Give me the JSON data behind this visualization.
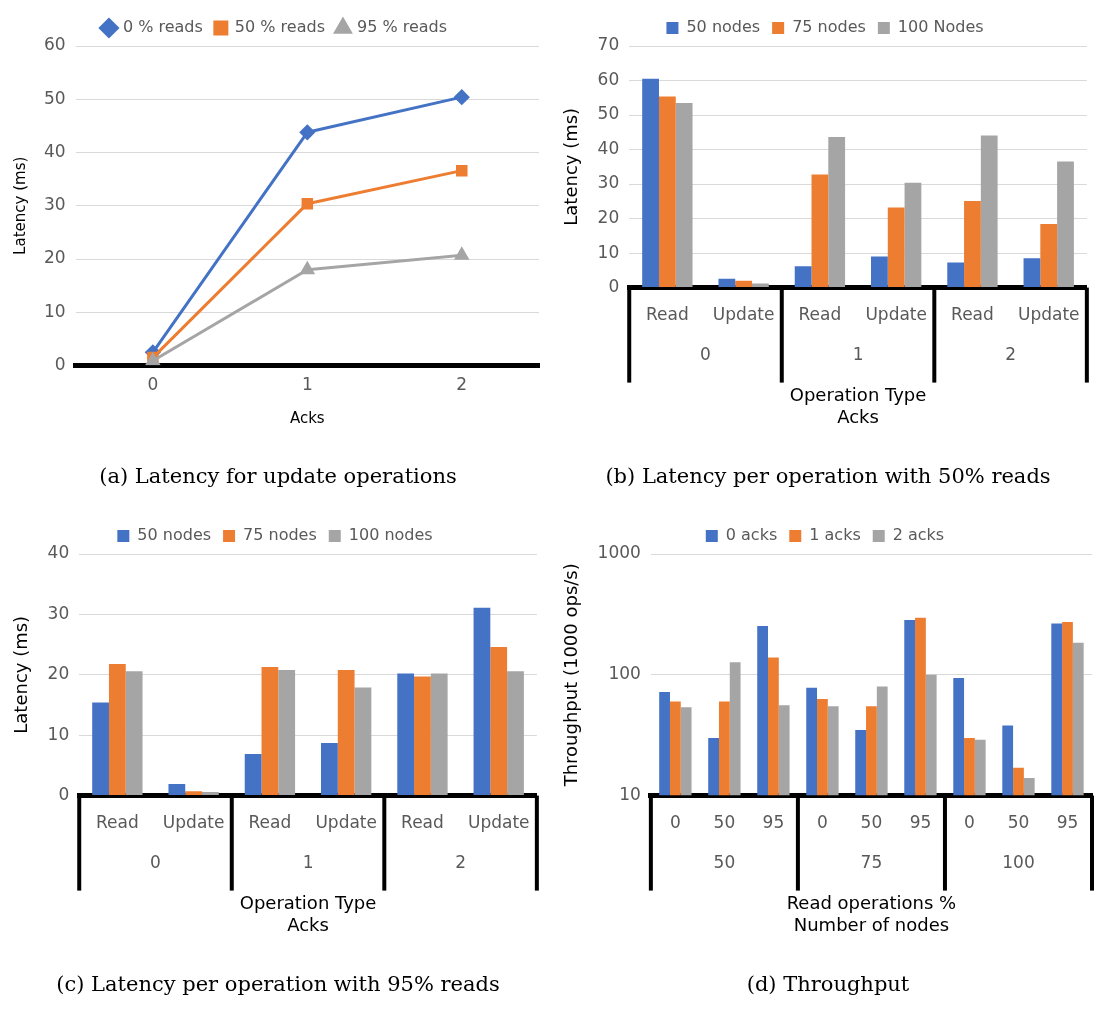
{
  "chart_data": [
    {
      "type": "line",
      "title": "(a) Latency for update operations",
      "xlabel": "Acks",
      "ylabel": "Latency (ms)",
      "categories": [
        "0",
        "1",
        "2"
      ],
      "ylim": [
        0,
        60
      ],
      "yticks": [
        0,
        10,
        20,
        30,
        40,
        50,
        60
      ],
      "grid": "y",
      "legend": "top",
      "series": [
        {
          "name": "0 % reads",
          "color": "#4472c4",
          "marker": "diamond",
          "values": [
            2.5,
            43.8,
            50.4
          ]
        },
        {
          "name": "50 % reads",
          "color": "#ed7d31",
          "marker": "square",
          "values": [
            1.5,
            30.4,
            36.6
          ]
        },
        {
          "name": "95 % reads",
          "color": "#a5a5a5",
          "marker": "triangle",
          "values": [
            0.9,
            18.0,
            20.7
          ]
        }
      ]
    },
    {
      "type": "bar",
      "title": "(b) Latency per operation with 50% reads",
      "xlabel": "Operation Type\nAcks",
      "ylabel": "Latency (ms)",
      "categories": [
        "Read",
        "Update",
        "Read",
        "Update",
        "Read",
        "Update"
      ],
      "annotations": [
        "0",
        "1",
        "2"
      ],
      "ylim": [
        0,
        70
      ],
      "yticks": [
        0,
        10,
        20,
        30,
        40,
        50,
        60,
        70
      ],
      "grid": "y",
      "legend": "top",
      "series": [
        {
          "name": "50 nodes",
          "color": "#4472c4",
          "values": [
            60.5,
            2.6,
            6.2,
            9.0,
            7.3,
            8.5
          ]
        },
        {
          "name": "75 nodes",
          "color": "#ed7d31",
          "values": [
            55.4,
            2.0,
            32.8,
            23.2,
            25.1,
            18.4
          ]
        },
        {
          "name": "100 Nodes",
          "color": "#a5a5a5",
          "values": [
            53.5,
            1.2,
            43.6,
            30.4,
            44.1,
            36.5
          ]
        }
      ]
    },
    {
      "type": "bar",
      "title": "(c) Latency per operation with 95% reads",
      "xlabel": "Operation Type\nAcks",
      "ylabel": "Latency (ms)",
      "categories": [
        "Read",
        "Update",
        "Read",
        "Update",
        "Read",
        "Update"
      ],
      "annotations": [
        "0",
        "1",
        "2"
      ],
      "ylim": [
        0,
        40
      ],
      "yticks": [
        0,
        10,
        20,
        30,
        40
      ],
      "grid": "y",
      "legend": "top",
      "series": [
        {
          "name": "50 nodes",
          "color": "#4472c4",
          "values": [
            15.4,
            1.9,
            6.9,
            8.7,
            20.2,
            31.1
          ]
        },
        {
          "name": "75 nodes",
          "color": "#ed7d31",
          "values": [
            21.8,
            0.7,
            21.3,
            20.8,
            19.7,
            24.6
          ]
        },
        {
          "name": "100 nodes",
          "color": "#a5a5a5",
          "values": [
            20.6,
            0.6,
            20.8,
            17.9,
            20.2,
            20.6
          ]
        }
      ]
    },
    {
      "type": "bar",
      "title": "(d) Throughput",
      "xlabel": "Read operations %\nNumber of nodes",
      "ylabel": "Throughput (1000 ops/s)",
      "categories": [
        "0",
        "50",
        "95",
        "0",
        "50",
        "95",
        "0",
        "50",
        "95"
      ],
      "annotations": [
        "50",
        "75",
        "100"
      ],
      "log": true,
      "ylim": [
        10,
        1000
      ],
      "yticks": [
        10,
        100,
        1000
      ],
      "grid": "y",
      "legend": "top",
      "series": [
        {
          "name": "0 acks",
          "color": "#4472c4",
          "values": [
            72,
            30,
            254,
            78,
            35,
            284,
            94,
            38,
            266
          ]
        },
        {
          "name": "1 acks",
          "color": "#ed7d31",
          "values": [
            60,
            60,
            139,
            63,
            55,
            297,
            30,
            17,
            274
          ]
        },
        {
          "name": "2 acks",
          "color": "#a5a5a5",
          "values": [
            54,
            127,
            56,
            55,
            80,
            100,
            29,
            14,
            184
          ]
        }
      ]
    }
  ]
}
